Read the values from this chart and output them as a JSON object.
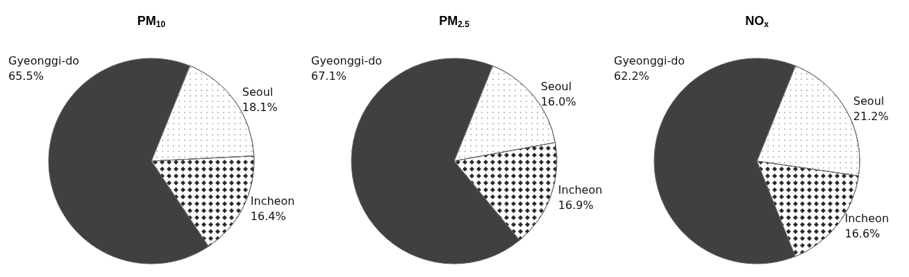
{
  "chart_data": [
    {
      "type": "pie",
      "title": "PM$_{10}$",
      "categories": [
        "Gyeonggi-do",
        "Seoul",
        "Incheon"
      ],
      "values": [
        65.5,
        18.1,
        16.4
      ],
      "value_labels": [
        "65.5%",
        "18.1%",
        "16.4%"
      ],
      "colors": [
        "#404040",
        "#ffffff",
        "#ffffff"
      ]
    },
    {
      "type": "pie",
      "title": "PM$_{2.5}$",
      "categories": [
        "Gyeonggi-do",
        "Seoul",
        "Incheon"
      ],
      "values": [
        67.1,
        16.0,
        16.9
      ],
      "value_labels": [
        "67.1%",
        "16.0%",
        "16.9%"
      ],
      "colors": [
        "#404040",
        "#ffffff",
        "#ffffff"
      ]
    },
    {
      "type": "pie",
      "title": "NO$_{x}$",
      "categories": [
        "Gyeonggi-do",
        "Seoul",
        "Incheon"
      ],
      "values": [
        62.2,
        21.2,
        16.6
      ],
      "value_labels": [
        "62.2%",
        "21.2%",
        "16.6%"
      ],
      "colors": [
        "#404040",
        "#ffffff",
        "#ffffff"
      ]
    }
  ]
}
